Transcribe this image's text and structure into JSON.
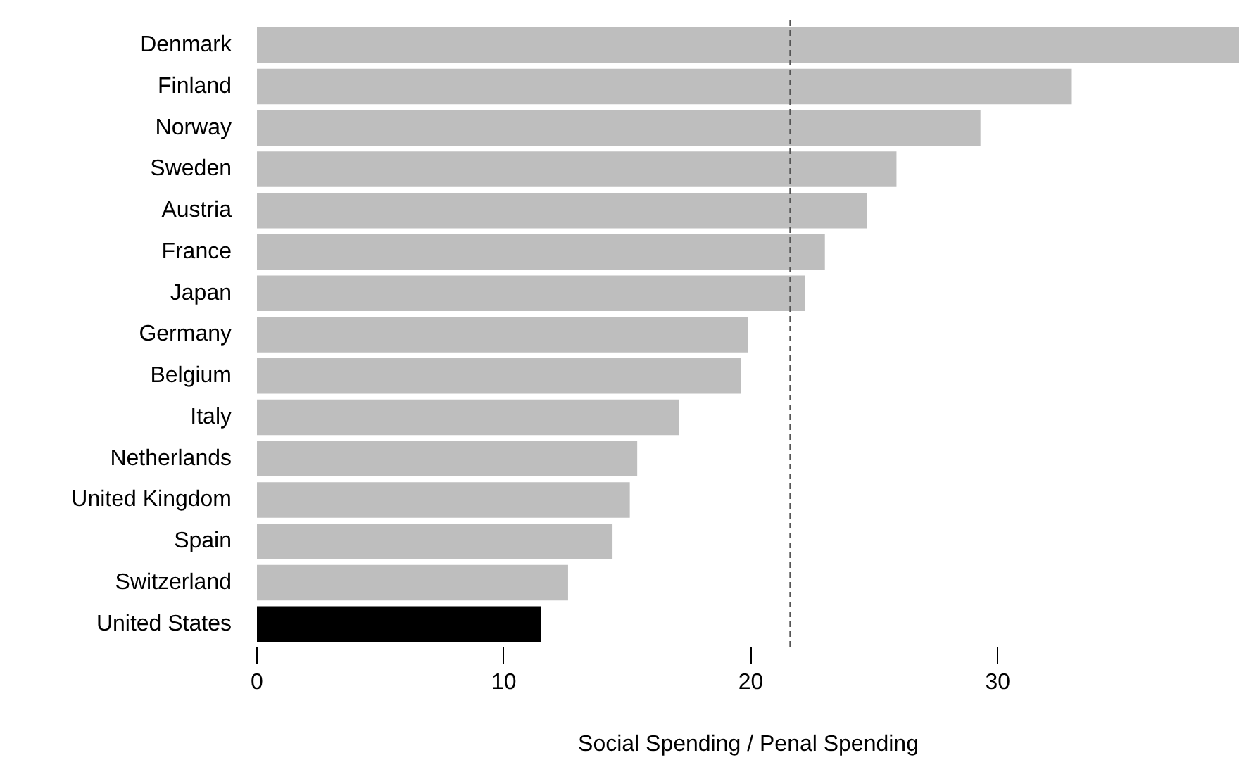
{
  "chart_data": {
    "type": "bar",
    "orientation": "horizontal",
    "xlabel": "Social Spending / Penal Spending",
    "categories": [
      "Denmark",
      "Finland",
      "Norway",
      "Sweden",
      "Austria",
      "France",
      "Japan",
      "Germany",
      "Belgium",
      "Italy",
      "Netherlands",
      "United Kingdom",
      "Spain",
      "Switzerland",
      "United States"
    ],
    "values": [
      39.8,
      33.0,
      29.3,
      25.9,
      24.7,
      23.0,
      22.2,
      19.9,
      19.6,
      17.1,
      15.4,
      15.1,
      14.4,
      12.6,
      11.5
    ],
    "colors": [
      "#bebebe",
      "#bebebe",
      "#bebebe",
      "#bebebe",
      "#bebebe",
      "#bebebe",
      "#bebebe",
      "#bebebe",
      "#bebebe",
      "#bebebe",
      "#bebebe",
      "#bebebe",
      "#bebebe",
      "#bebebe",
      "#000000"
    ],
    "xlim": [
      0,
      39.8
    ],
    "xticks": [
      0,
      10,
      20,
      30
    ],
    "ref_lines": [
      {
        "axis": "x",
        "value": 21.6,
        "label": null,
        "color": "#555555",
        "line_style": "dashed"
      }
    ],
    "grid": false
  }
}
